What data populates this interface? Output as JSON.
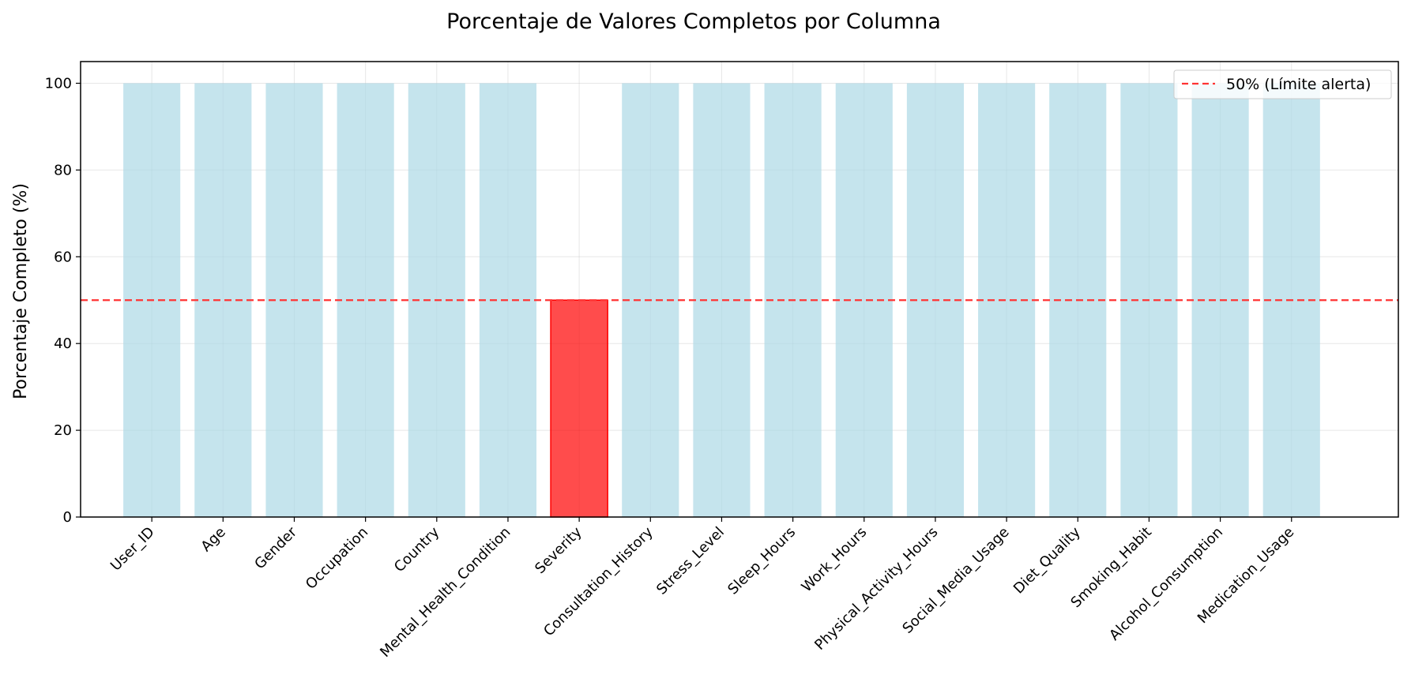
{
  "chart_data": {
    "type": "bar",
    "title": "Porcentaje de Valores Completos por Columna",
    "xlabel": "",
    "ylabel": "Porcentaje Completo (%)",
    "categories": [
      "User_ID",
      "Age",
      "Gender",
      "Occupation",
      "Country",
      "Mental_Health_Condition",
      "Severity",
      "Consultation_History",
      "Stress_Level",
      "Sleep_Hours",
      "Work_Hours",
      "Physical_Activity_Hours",
      "Social_Media_Usage",
      "Diet_Quality",
      "Smoking_Habit",
      "Alcohol_Consumption",
      "Medication_Usage"
    ],
    "values": [
      100,
      100,
      100,
      100,
      100,
      100,
      50,
      100,
      100,
      100,
      100,
      100,
      100,
      100,
      100,
      100,
      100
    ],
    "ylim": [
      0,
      105
    ],
    "yticks": [
      0,
      20,
      40,
      60,
      80,
      100
    ],
    "grid": true,
    "threshold": {
      "value": 50,
      "label": "50% (Límite alerta)",
      "color": "#ff3333"
    },
    "colors": {
      "normal": "#add8e6",
      "alert": "#ff0000"
    },
    "legend": {
      "placement": "top-right"
    }
  }
}
